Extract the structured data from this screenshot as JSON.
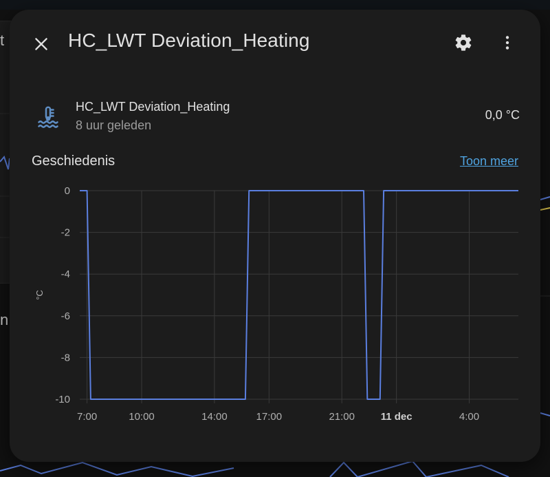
{
  "dialog": {
    "title": "HC_LWT Deviation_Heating",
    "entity": {
      "name": "HC_LWT Deviation_Heating",
      "last_changed": "8 uur geleden",
      "state": "0,0 °C",
      "icon": "coolant-temperature-icon"
    },
    "history": {
      "title": "Geschiedenis",
      "show_more": "Toon meer"
    }
  },
  "icons": {
    "close": "close-icon",
    "settings": "gear-icon",
    "more": "dots-vertical-icon"
  },
  "colors": {
    "accent": "#4fa3e0",
    "series": "#5b7fe0",
    "icon": "#5f8ec4"
  },
  "background": {
    "fragment_top": "t",
    "fragment_mid": "n"
  },
  "chart_data": {
    "type": "line",
    "title": "",
    "xlabel": "",
    "ylabel": "°C",
    "ylim": [
      -10,
      0
    ],
    "yticks": [
      "0",
      "-2",
      "-4",
      "-6",
      "-8",
      "-10"
    ],
    "xticks": [
      {
        "label": "7:00",
        "hour": 7,
        "bold": false
      },
      {
        "label": "10:00",
        "hour": 10,
        "bold": false
      },
      {
        "label": "14:00",
        "hour": 14,
        "bold": false
      },
      {
        "label": "17:00",
        "hour": 17,
        "bold": false
      },
      {
        "label": "21:00",
        "hour": 21,
        "bold": false
      },
      {
        "label": "11 dec",
        "hour": 24,
        "bold": true
      },
      {
        "label": "4:00",
        "hour": 28,
        "bold": false
      }
    ],
    "xrange_hours": [
      6.6,
      30.7
    ],
    "grid": true,
    "series": [
      {
        "color": "#5b7fe0",
        "points": [
          [
            6.6,
            0
          ],
          [
            7.0,
            0
          ],
          [
            7.2,
            -10
          ],
          [
            15.7,
            -10
          ],
          [
            15.9,
            0
          ],
          [
            22.2,
            0
          ],
          [
            22.4,
            -10
          ],
          [
            23.1,
            -10
          ],
          [
            23.3,
            0
          ],
          [
            30.7,
            0
          ]
        ]
      }
    ]
  }
}
